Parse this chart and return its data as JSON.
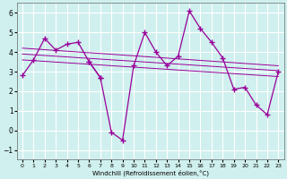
{
  "xlabel": "Windchill (Refroidissement éolien,°C)",
  "background_color": "#cff0ee",
  "grid_color": "#ffffff",
  "line_color": "#990099",
  "s0_x": [
    0,
    1,
    2,
    3,
    4,
    5,
    6,
    7
  ],
  "s0_y": [
    2.8,
    3.6,
    4.7,
    4.1,
    4.4,
    4.5,
    3.5,
    2.7
  ],
  "s1_x": [
    6,
    7,
    8,
    9,
    10,
    11,
    12,
    13,
    14,
    15,
    16,
    17,
    18,
    19,
    20,
    21,
    22,
    23
  ],
  "s1_y": [
    3.5,
    2.7,
    -0.1,
    -0.5,
    3.3,
    5.0,
    4.0,
    3.3,
    3.8,
    6.1,
    5.2,
    4.5,
    3.7,
    2.1,
    2.2,
    1.3,
    0.8,
    3.0
  ],
  "reg_lines": [
    {
      "x": [
        0,
        23
      ],
      "y": [
        4.2,
        3.3
      ]
    },
    {
      "x": [
        0,
        23
      ],
      "y": [
        3.9,
        3.05
      ]
    },
    {
      "x": [
        0,
        23
      ],
      "y": [
        3.6,
        2.75
      ]
    }
  ],
  "ylim": [
    -1.5,
    6.5
  ],
  "yticks": [
    -1,
    0,
    1,
    2,
    3,
    4,
    5,
    6
  ],
  "xlim": [
    -0.5,
    23.5
  ],
  "xticks": [
    0,
    1,
    2,
    3,
    4,
    5,
    6,
    7,
    8,
    9,
    10,
    11,
    12,
    13,
    14,
    15,
    16,
    17,
    18,
    19,
    20,
    21,
    22,
    23
  ]
}
